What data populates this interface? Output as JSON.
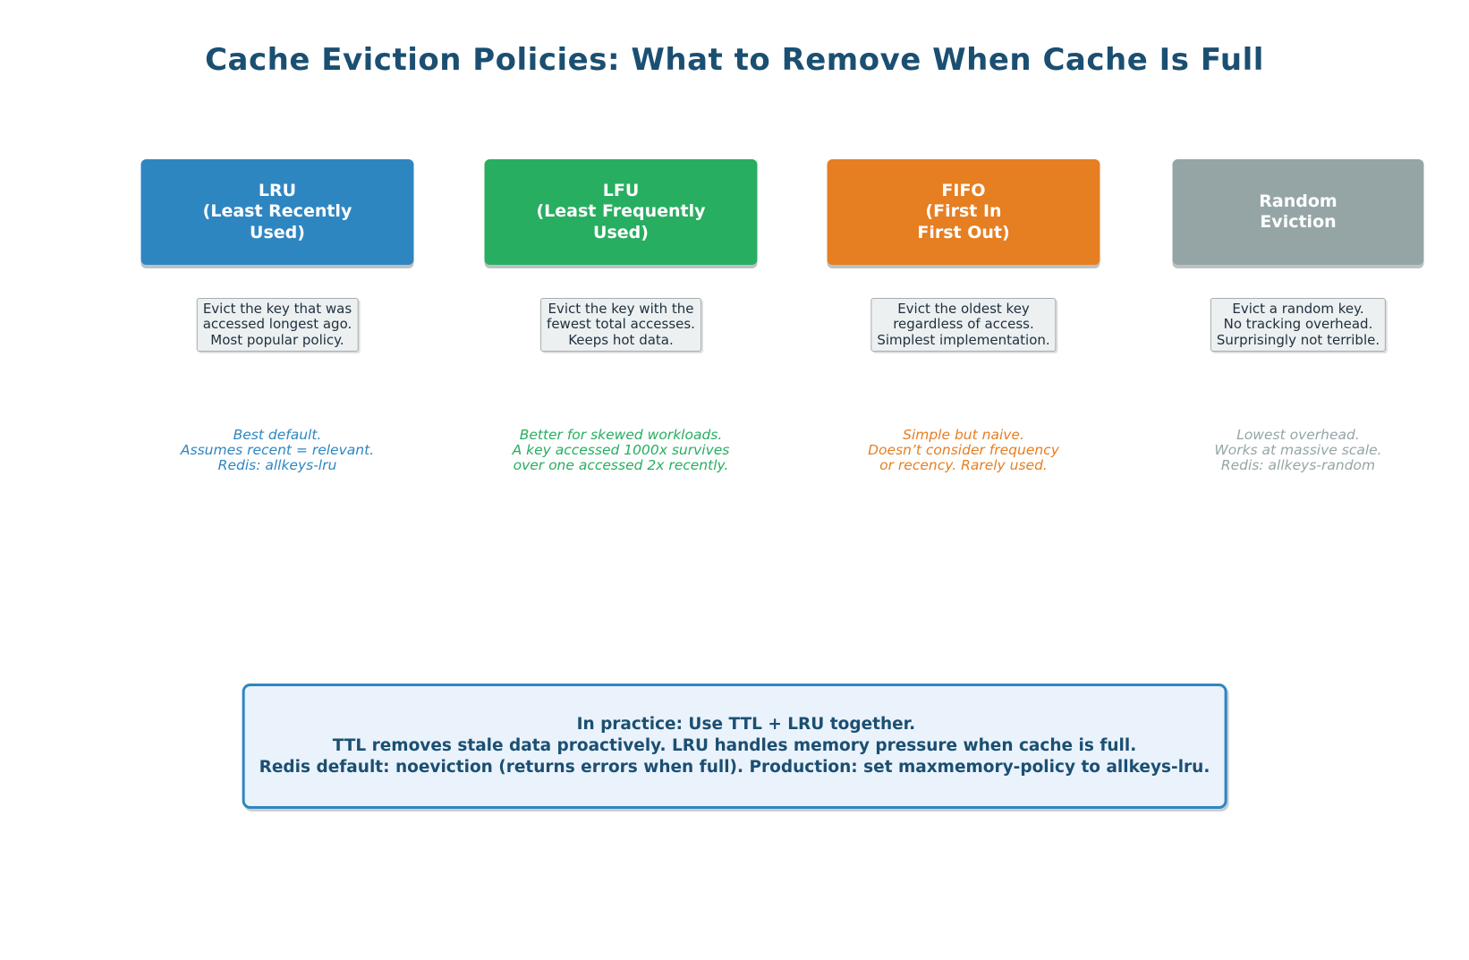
{
  "title": "Cache Eviction Policies: What to Remove When Cache Is Full",
  "policies": [
    {
      "id": "lru",
      "title": "LRU\n(Least Recently\nUsed)",
      "description": "Evict the key that was\naccessed longest ago.\nMost popular policy.",
      "note": "Best default.\nAssumes recent = relevant.\nRedis: allkeys-lru",
      "color": "#2E86C1"
    },
    {
      "id": "lfu",
      "title": "LFU\n(Least Frequently\nUsed)",
      "description": "Evict the key with the\nfewest total accesses.\nKeeps hot data.",
      "note": "Better for skewed workloads.\nA key accessed 1000x survives\nover one accessed 2x recently.",
      "color": "#27AE60"
    },
    {
      "id": "fifo",
      "title": "FIFO\n(First In\nFirst Out)",
      "description": "Evict the oldest key\nregardless of access.\nSimplest implementation.",
      "note": "Simple but naive.\nDoesn’t consider frequency\nor recency. Rarely used.",
      "color": "#E67E22"
    },
    {
      "id": "random",
      "title": "Random\nEviction",
      "description": "Evict a random key.\nNo tracking overhead.\nSurprisingly not terrible.",
      "note": "Lowest overhead.\nWorks at massive scale.\nRedis: allkeys-random",
      "color": "#95A5A6"
    }
  ],
  "callout": {
    "text": "In practice: Use TTL + LRU together.\nTTL removes stale data proactively. LRU handles memory pressure when cache is full.\nRedis default: noeviction (returns errors when full). Production: set maxmemory-policy to allkeys-lru.",
    "background": "#EAF2FB",
    "border_color": "#2E86C1",
    "text_color": "#1B4F72"
  },
  "colors": {
    "title": "#1B4F72",
    "description_bg": "#ECF0F1",
    "description_border": "#A6ACAF",
    "description_text": "#22313F"
  }
}
